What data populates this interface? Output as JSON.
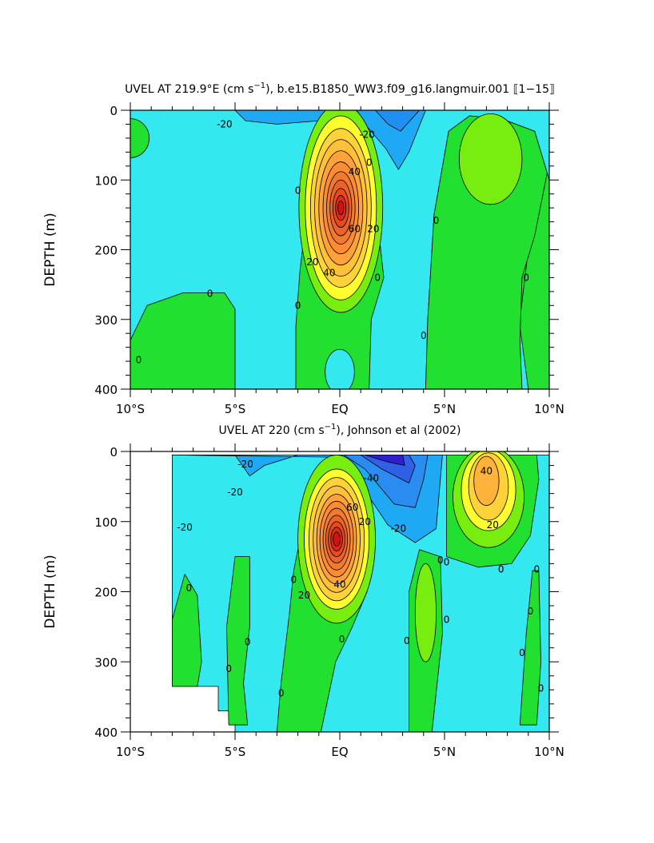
{
  "panels": [
    {
      "title_pre": "UVEL AT 219.9°E (cm s",
      "title_sup": "−1",
      "title_post": "), b.e15.B1850_WW3.f09_g16.langmuir.001 ⟦1−15⟧",
      "ylabel": "DEPTH (m)"
    },
    {
      "title_pre": "UVEL AT 220 (cm s",
      "title_sup": "−1",
      "title_post": "), Johnson et al (2002)",
      "ylabel": "DEPTH (m)"
    }
  ],
  "colors": {
    "neg60": "#2f1fcf",
    "neg40": "#2f6fef",
    "neg20": "#1fa9f5",
    "neg0": "#33e8ee",
    "zero": "#00e8d8",
    "pos0": "#22e030",
    "pos20": "#77ee10",
    "pos30": "#ffff30",
    "pos40": "#ffd23a",
    "pos50": "#ffa23a",
    "pos60": "#f07a30",
    "pos70": "#e84a20",
    "pos80": "#d41010"
  },
  "chart_data": [
    {
      "type": "heatmap",
      "subtype": "filled-contour",
      "title": "UVEL AT 219.9°E (cm s−1), b.e15.B1850_WW3.f09_g16.langmuir.001 ⟦1−15⟧",
      "xlabel": "",
      "ylabel": "DEPTH (m)",
      "x_ticks": [
        "10°S",
        "5°S",
        "EQ",
        "5°N",
        "10°N"
      ],
      "x_tick_values": [
        -10,
        -5,
        0,
        5,
        10
      ],
      "y_ticks": [
        "0",
        "100",
        "200",
        "300",
        "400"
      ],
      "y_tick_values": [
        0,
        100,
        200,
        300,
        400
      ],
      "xlim": [
        -10,
        10
      ],
      "ylim": [
        400,
        0
      ],
      "contour_labels": [
        {
          "text": "-20",
          "lat": -5.5,
          "depth": 20
        },
        {
          "text": "-20",
          "lat": 1.3,
          "depth": 35
        },
        {
          "text": "0",
          "lat": 1.4,
          "depth": 75
        },
        {
          "text": "0",
          "lat": -2.0,
          "depth": 115
        },
        {
          "text": "40",
          "lat": 0.7,
          "depth": 88
        },
        {
          "text": "60",
          "lat": 0.7,
          "depth": 170
        },
        {
          "text": "20",
          "lat": 1.6,
          "depth": 170
        },
        {
          "text": "20",
          "lat": -1.3,
          "depth": 218
        },
        {
          "text": "40",
          "lat": -0.5,
          "depth": 233
        },
        {
          "text": "0",
          "lat": 1.8,
          "depth": 240
        },
        {
          "text": "0",
          "lat": 4.6,
          "depth": 158
        },
        {
          "text": "0",
          "lat": 8.9,
          "depth": 240
        },
        {
          "text": "0",
          "lat": -6.2,
          "depth": 263
        },
        {
          "text": "0",
          "lat": -2.0,
          "depth": 280
        },
        {
          "text": "0",
          "lat": 4.0,
          "depth": 323
        },
        {
          "text": "0",
          "lat": -9.6,
          "depth": 358
        }
      ]
    },
    {
      "type": "heatmap",
      "subtype": "filled-contour",
      "title": "UVEL AT 220 (cm s−1), Johnson et al (2002)",
      "xlabel": "",
      "ylabel": "DEPTH (m)",
      "x_ticks": [
        "10°S",
        "5°S",
        "EQ",
        "5°N",
        "10°N"
      ],
      "x_tick_values": [
        -10,
        -5,
        0,
        5,
        10
      ],
      "y_ticks": [
        "0",
        "100",
        "200",
        "300",
        "400"
      ],
      "y_tick_values": [
        0,
        100,
        200,
        300,
        400
      ],
      "xlim": [
        -10,
        10
      ],
      "ylim": [
        400,
        0
      ],
      "contour_labels": [
        {
          "text": "-20",
          "lat": -4.5,
          "depth": 18
        },
        {
          "text": "-20",
          "lat": -5.0,
          "depth": 58
        },
        {
          "text": "-20",
          "lat": -7.4,
          "depth": 108
        },
        {
          "text": "-40",
          "lat": 1.5,
          "depth": 38
        },
        {
          "text": "-20",
          "lat": 2.8,
          "depth": 110
        },
        {
          "text": "20",
          "lat": 1.2,
          "depth": 100
        },
        {
          "text": "60",
          "lat": 0.6,
          "depth": 80
        },
        {
          "text": "40",
          "lat": 0.0,
          "depth": 190
        },
        {
          "text": "20",
          "lat": -1.7,
          "depth": 205
        },
        {
          "text": "0",
          "lat": -2.2,
          "depth": 183
        },
        {
          "text": "40",
          "lat": 7.0,
          "depth": 28
        },
        {
          "text": "20",
          "lat": 7.3,
          "depth": 105
        },
        {
          "text": "0",
          "lat": 4.8,
          "depth": 155
        },
        {
          "text": "0",
          "lat": 5.1,
          "depth": 158
        },
        {
          "text": "0",
          "lat": 7.7,
          "depth": 168
        },
        {
          "text": "0",
          "lat": 9.4,
          "depth": 168
        },
        {
          "text": "0",
          "lat": 9.1,
          "depth": 228
        },
        {
          "text": "0",
          "lat": -7.2,
          "depth": 195
        },
        {
          "text": "0",
          "lat": -4.4,
          "depth": 272
        },
        {
          "text": "0",
          "lat": 0.1,
          "depth": 268
        },
        {
          "text": "0",
          "lat": 5.1,
          "depth": 240
        },
        {
          "text": "0",
          "lat": 3.2,
          "depth": 270
        },
        {
          "text": "0",
          "lat": 8.7,
          "depth": 287
        },
        {
          "text": "0",
          "lat": -5.3,
          "depth": 310
        },
        {
          "text": "0",
          "lat": -2.8,
          "depth": 345
        },
        {
          "text": "0",
          "lat": 9.6,
          "depth": 338
        }
      ]
    }
  ]
}
